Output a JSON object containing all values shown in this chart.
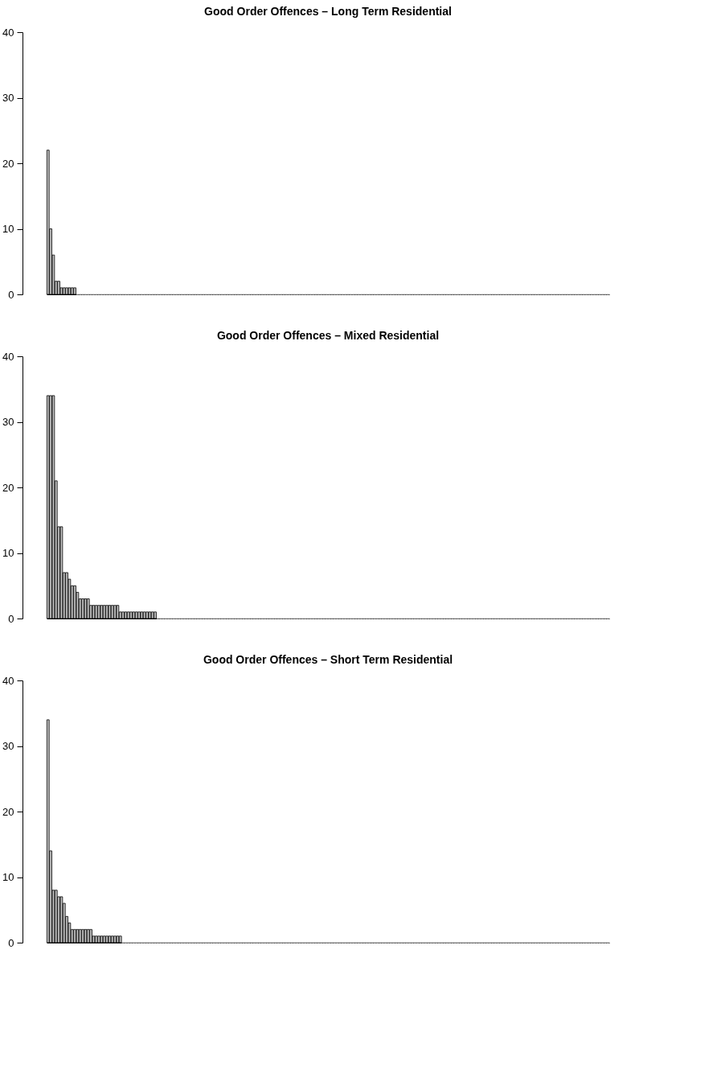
{
  "chart_data": [
    {
      "type": "bar",
      "title": "Good Order Offences – Long Term Residential",
      "color": "#bebebe",
      "ylim": [
        0,
        40
      ],
      "yticks": [
        0,
        10,
        20,
        30,
        40
      ],
      "grid": false,
      "tick_labels": "y",
      "categories": [
        null,
        null,
        null,
        null,
        null,
        null,
        null,
        null,
        null,
        null,
        null,
        null,
        null,
        null,
        null,
        null,
        null,
        null,
        null,
        null,
        null,
        null,
        null,
        null,
        null,
        null,
        null,
        null,
        null,
        null,
        null,
        null,
        null,
        null,
        null,
        null,
        null,
        null,
        null,
        null,
        null,
        null,
        null,
        null,
        null,
        null,
        null,
        null,
        null,
        null,
        null,
        null,
        null,
        null,
        null,
        null,
        null,
        null,
        null,
        null,
        null,
        null,
        null,
        null,
        null,
        null,
        null,
        null,
        null,
        null,
        null,
        null,
        null,
        null,
        null,
        null,
        null,
        null,
        null,
        null,
        null,
        null,
        null,
        null,
        null,
        null,
        null,
        null,
        null,
        null,
        null,
        null,
        null,
        null,
        null,
        null,
        null,
        null,
        null,
        null,
        null,
        null,
        null,
        null,
        null,
        null,
        null,
        null,
        null,
        null,
        null,
        null,
        null,
        null,
        null,
        null,
        null,
        null,
        null,
        null,
        null,
        null,
        null,
        null,
        null,
        null,
        null,
        null,
        null,
        null,
        null,
        null,
        null,
        null,
        null,
        null,
        null,
        null,
        null,
        null,
        null,
        null,
        null,
        null,
        null,
        null,
        null,
        null,
        null,
        null,
        null,
        null,
        null,
        null,
        null,
        null,
        null,
        null,
        null,
        null,
        null,
        null,
        null,
        null,
        null,
        null,
        null,
        null,
        null,
        null,
        null,
        null,
        null,
        null,
        null,
        null,
        null,
        null,
        null,
        null,
        null,
        null,
        null,
        null,
        null,
        null,
        null,
        null,
        null,
        null,
        null,
        null,
        null,
        null,
        null,
        null,
        null,
        null,
        null,
        null,
        null,
        null,
        null,
        null,
        null,
        null,
        null,
        null,
        null,
        null
      ],
      "values": [
        22,
        10,
        6,
        2,
        2,
        1,
        1,
        1,
        1,
        1,
        1,
        0,
        0,
        0,
        0,
        0,
        0,
        0,
        0,
        0,
        0,
        0,
        0,
        0,
        0,
        0,
        0,
        0,
        0,
        0,
        0,
        0,
        0,
        0,
        0,
        0,
        0,
        0,
        0,
        0,
        0,
        0,
        0,
        0,
        0,
        0,
        0,
        0,
        0,
        0,
        0,
        0,
        0,
        0,
        0,
        0,
        0,
        0,
        0,
        0,
        0,
        0,
        0,
        0,
        0,
        0,
        0,
        0,
        0,
        0,
        0,
        0,
        0,
        0,
        0,
        0,
        0,
        0,
        0,
        0,
        0,
        0,
        0,
        0,
        0,
        0,
        0,
        0,
        0,
        0,
        0,
        0,
        0,
        0,
        0,
        0,
        0,
        0,
        0,
        0,
        0,
        0,
        0,
        0,
        0,
        0,
        0,
        0,
        0,
        0,
        0,
        0,
        0,
        0,
        0,
        0,
        0,
        0,
        0,
        0,
        0,
        0,
        0,
        0,
        0,
        0,
        0,
        0,
        0,
        0,
        0,
        0,
        0,
        0,
        0,
        0,
        0,
        0,
        0,
        0,
        0,
        0,
        0,
        0,
        0,
        0,
        0,
        0,
        0,
        0,
        0,
        0,
        0,
        0,
        0,
        0,
        0,
        0,
        0,
        0,
        0,
        0,
        0,
        0,
        0,
        0,
        0,
        0,
        0,
        0,
        0,
        0,
        0,
        0,
        0,
        0,
        0,
        0,
        0,
        0,
        0,
        0,
        0,
        0,
        0,
        0,
        0,
        0,
        0,
        0,
        0,
        0,
        0,
        0,
        0,
        0,
        0,
        0,
        0,
        0,
        0,
        0,
        0,
        0,
        0,
        0,
        0,
        0,
        0,
        0
      ]
    },
    {
      "type": "bar",
      "title": "Good Order Offences – Mixed Residential",
      "color": "#bebebe",
      "ylim": [
        0,
        40
      ],
      "yticks": [
        0,
        10,
        20,
        30,
        40
      ],
      "grid": false,
      "tick_labels": "y",
      "categories": [
        null,
        null,
        null,
        null,
        null,
        null,
        null,
        null,
        null,
        null,
        null,
        null,
        null,
        null,
        null,
        null,
        null,
        null,
        null,
        null,
        null,
        null,
        null,
        null,
        null,
        null,
        null,
        null,
        null,
        null,
        null,
        null,
        null,
        null,
        null,
        null,
        null,
        null,
        null,
        null,
        null,
        null,
        null,
        null,
        null,
        null,
        null,
        null,
        null,
        null,
        null,
        null,
        null,
        null,
        null,
        null,
        null,
        null,
        null,
        null,
        null,
        null,
        null,
        null,
        null,
        null,
        null,
        null,
        null,
        null,
        null,
        null,
        null,
        null,
        null,
        null,
        null,
        null,
        null,
        null,
        null,
        null,
        null,
        null,
        null,
        null,
        null,
        null,
        null,
        null,
        null,
        null,
        null,
        null,
        null,
        null,
        null,
        null,
        null,
        null,
        null,
        null,
        null,
        null,
        null,
        null,
        null,
        null,
        null,
        null,
        null,
        null,
        null,
        null,
        null,
        null,
        null,
        null,
        null,
        null,
        null,
        null,
        null,
        null,
        null,
        null,
        null,
        null,
        null,
        null,
        null,
        null,
        null,
        null,
        null,
        null,
        null,
        null,
        null,
        null,
        null,
        null,
        null,
        null,
        null,
        null,
        null,
        null,
        null,
        null,
        null,
        null,
        null,
        null,
        null,
        null,
        null,
        null,
        null,
        null,
        null,
        null,
        null,
        null,
        null,
        null,
        null,
        null,
        null,
        null,
        null,
        null,
        null,
        null,
        null,
        null,
        null,
        null,
        null,
        null,
        null,
        null,
        null,
        null,
        null,
        null,
        null,
        null,
        null,
        null,
        null,
        null,
        null,
        null,
        null,
        null,
        null,
        null,
        null,
        null,
        null,
        null,
        null,
        null,
        null,
        null,
        null,
        null,
        null,
        null
      ],
      "values": [
        34,
        34,
        34,
        21,
        14,
        14,
        7,
        7,
        6,
        5,
        5,
        4,
        3,
        3,
        3,
        3,
        2,
        2,
        2,
        2,
        2,
        2,
        2,
        2,
        2,
        2,
        2,
        1,
        1,
        1,
        1,
        1,
        1,
        1,
        1,
        1,
        1,
        1,
        1,
        1,
        1,
        0,
        0,
        0,
        0,
        0,
        0,
        0,
        0,
        0,
        0,
        0,
        0,
        0,
        0,
        0,
        0,
        0,
        0,
        0,
        0,
        0,
        0,
        0,
        0,
        0,
        0,
        0,
        0,
        0,
        0,
        0,
        0,
        0,
        0,
        0,
        0,
        0,
        0,
        0,
        0,
        0,
        0,
        0,
        0,
        0,
        0,
        0,
        0,
        0,
        0,
        0,
        0,
        0,
        0,
        0,
        0,
        0,
        0,
        0,
        0,
        0,
        0,
        0,
        0,
        0,
        0,
        0,
        0,
        0,
        0,
        0,
        0,
        0,
        0,
        0,
        0,
        0,
        0,
        0,
        0,
        0,
        0,
        0,
        0,
        0,
        0,
        0,
        0,
        0,
        0,
        0,
        0,
        0,
        0,
        0,
        0,
        0,
        0,
        0,
        0,
        0,
        0,
        0,
        0,
        0,
        0,
        0,
        0,
        0,
        0,
        0,
        0,
        0,
        0,
        0,
        0,
        0,
        0,
        0,
        0,
        0,
        0,
        0,
        0,
        0,
        0,
        0,
        0,
        0,
        0,
        0,
        0,
        0,
        0,
        0,
        0,
        0,
        0,
        0,
        0,
        0,
        0,
        0,
        0,
        0,
        0,
        0,
        0,
        0,
        0,
        0,
        0,
        0,
        0,
        0,
        0,
        0,
        0,
        0,
        0,
        0,
        0,
        0,
        0,
        0,
        0,
        0,
        0,
        0
      ]
    },
    {
      "type": "bar",
      "title": "Good Order Offences – Short Term Residential",
      "color": "#bebebe",
      "ylim": [
        0,
        40
      ],
      "yticks": [
        0,
        10,
        20,
        30,
        40
      ],
      "grid": false,
      "tick_labels": "y",
      "categories": [
        null,
        null,
        null,
        null,
        null,
        null,
        null,
        null,
        null,
        null,
        null,
        null,
        null,
        null,
        null,
        null,
        null,
        null,
        null,
        null,
        null,
        null,
        null,
        null,
        null,
        null,
        null,
        null,
        null,
        null,
        null,
        null,
        null,
        null,
        null,
        null,
        null,
        null,
        null,
        null,
        null,
        null,
        null,
        null,
        null,
        null,
        null,
        null,
        null,
        null,
        null,
        null,
        null,
        null,
        null,
        null,
        null,
        null,
        null,
        null,
        null,
        null,
        null,
        null,
        null,
        null,
        null,
        null,
        null,
        null,
        null,
        null,
        null,
        null,
        null,
        null,
        null,
        null,
        null,
        null,
        null,
        null,
        null,
        null,
        null,
        null,
        null,
        null,
        null,
        null,
        null,
        null,
        null,
        null,
        null,
        null,
        null,
        null,
        null,
        null,
        null,
        null,
        null,
        null,
        null,
        null,
        null,
        null,
        null,
        null,
        null,
        null,
        null,
        null,
        null,
        null,
        null,
        null,
        null,
        null,
        null,
        null,
        null,
        null,
        null,
        null,
        null,
        null,
        null,
        null,
        null,
        null,
        null,
        null,
        null,
        null,
        null,
        null,
        null,
        null,
        null,
        null,
        null,
        null,
        null,
        null,
        null,
        null,
        null,
        null,
        null,
        null,
        null,
        null,
        null,
        null,
        null,
        null,
        null,
        null,
        null,
        null,
        null,
        null,
        null,
        null,
        null,
        null,
        null,
        null,
        null,
        null,
        null,
        null,
        null,
        null,
        null,
        null,
        null,
        null,
        null,
        null,
        null,
        null,
        null,
        null,
        null,
        null,
        null,
        null,
        null,
        null,
        null,
        null,
        null,
        null,
        null,
        null,
        null,
        null,
        null,
        null,
        null,
        null,
        null,
        null,
        null,
        null,
        null,
        null
      ],
      "values": [
        34,
        14,
        8,
        8,
        7,
        7,
        6,
        4,
        3,
        2,
        2,
        2,
        2,
        2,
        2,
        2,
        2,
        1,
        1,
        1,
        1,
        1,
        1,
        1,
        1,
        1,
        1,
        1,
        0,
        0,
        0,
        0,
        0,
        0,
        0,
        0,
        0,
        0,
        0,
        0,
        0,
        0,
        0,
        0,
        0,
        0,
        0,
        0,
        0,
        0,
        0,
        0,
        0,
        0,
        0,
        0,
        0,
        0,
        0,
        0,
        0,
        0,
        0,
        0,
        0,
        0,
        0,
        0,
        0,
        0,
        0,
        0,
        0,
        0,
        0,
        0,
        0,
        0,
        0,
        0,
        0,
        0,
        0,
        0,
        0,
        0,
        0,
        0,
        0,
        0,
        0,
        0,
        0,
        0,
        0,
        0,
        0,
        0,
        0,
        0,
        0,
        0,
        0,
        0,
        0,
        0,
        0,
        0,
        0,
        0,
        0,
        0,
        0,
        0,
        0,
        0,
        0,
        0,
        0,
        0,
        0,
        0,
        0,
        0,
        0,
        0,
        0,
        0,
        0,
        0,
        0,
        0,
        0,
        0,
        0,
        0,
        0,
        0,
        0,
        0,
        0,
        0,
        0,
        0,
        0,
        0,
        0,
        0,
        0,
        0,
        0,
        0,
        0,
        0,
        0,
        0,
        0,
        0,
        0,
        0,
        0,
        0,
        0,
        0,
        0,
        0,
        0,
        0,
        0,
        0,
        0,
        0,
        0,
        0,
        0,
        0,
        0,
        0,
        0,
        0,
        0,
        0,
        0,
        0,
        0,
        0,
        0,
        0,
        0,
        0,
        0,
        0,
        0,
        0,
        0,
        0,
        0,
        0,
        0,
        0,
        0,
        0,
        0,
        0,
        0,
        0,
        0,
        0,
        0,
        0
      ]
    }
  ]
}
